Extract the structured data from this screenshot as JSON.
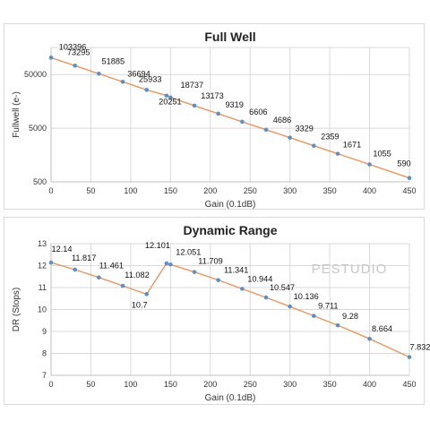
{
  "chart_data": [
    {
      "type": "line",
      "title": "Full Well",
      "xlabel": "Gain (0.1dB)",
      "ylabel": "Fullwell (e-)",
      "y_scale": "log",
      "y_ticks": [
        500,
        5000,
        50000
      ],
      "x_ticks": [
        0,
        50,
        100,
        150,
        200,
        250,
        300,
        350,
        400,
        450
      ],
      "xlim": [
        0,
        450
      ],
      "ylim": [
        500,
        160000
      ],
      "grid": true,
      "series": [
        {
          "color": "#e8975f",
          "marker_color": "#5b8fc9",
          "x": [
            0,
            30,
            60,
            90,
            120,
            145,
            150,
            180,
            210,
            240,
            270,
            300,
            330,
            360,
            400,
            450
          ],
          "values": [
            103396,
            73295,
            51885,
            36694,
            25933,
            20251,
            18737,
            13173,
            9319,
            6606,
            4686,
            3329,
            2359,
            1671,
            1055,
            590
          ],
          "labels": [
            "103396",
            "73295",
            "51885",
            "36694",
            "25933",
            "20251",
            "18737",
            "13173",
            "9319",
            "6606",
            "4686",
            "3329",
            "2359",
            "1671",
            "1055",
            "590"
          ]
        }
      ]
    },
    {
      "type": "line",
      "title": "Dynamic Range",
      "xlabel": "Gain (0.1dB)",
      "ylabel": "DR (Stops)",
      "y_ticks": [
        7,
        8,
        9,
        10,
        11,
        12,
        13
      ],
      "x_ticks": [
        0,
        50,
        100,
        150,
        200,
        250,
        300,
        350,
        400,
        450
      ],
      "xlim": [
        0,
        450
      ],
      "ylim": [
        7,
        13
      ],
      "grid": true,
      "watermark": "PESTUDIO",
      "series": [
        {
          "color": "#e8975f",
          "marker_color": "#5b8fc9",
          "x": [
            0,
            30,
            60,
            90,
            120,
            145,
            150,
            180,
            210,
            240,
            270,
            300,
            330,
            360,
            400,
            450
          ],
          "values": [
            12.14,
            11.817,
            11.461,
            11.082,
            10.7,
            12.101,
            12.051,
            11.709,
            11.341,
            10.944,
            10.547,
            10.136,
            9.711,
            9.28,
            8.664,
            7.832
          ],
          "labels": [
            "12.14",
            "11.817",
            "11.461",
            "11.082",
            "10.7",
            "12.101",
            "12.051",
            "11.709",
            "11.341",
            "10.944",
            "10.547",
            "10.136",
            "9.711",
            "9.28",
            "8.664",
            "7.832"
          ]
        }
      ]
    }
  ]
}
